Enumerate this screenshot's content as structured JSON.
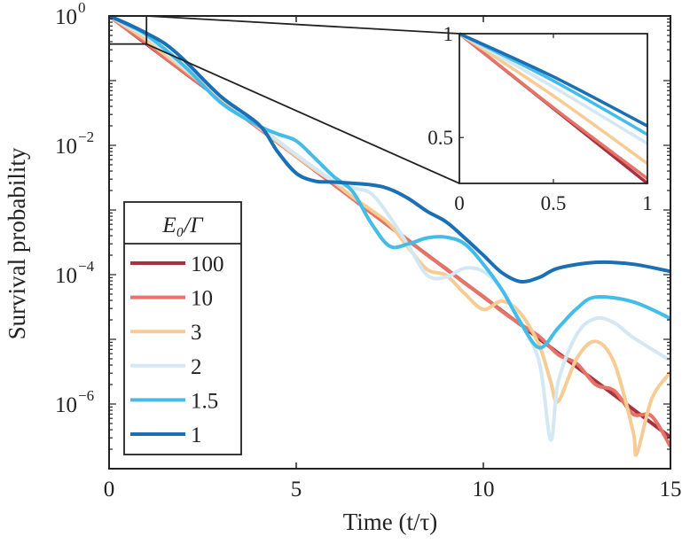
{
  "chart_data": {
    "type": "line",
    "xlabel": "Time (t/τ)",
    "ylabel": "Survival probability",
    "xlim": [
      0,
      15
    ],
    "ylim": [
      1e-07,
      1
    ],
    "yscale": "log",
    "x_ticks": [
      "0",
      "5",
      "10",
      "15"
    ],
    "y_ticks": [
      {
        "base": "10",
        "exp": "0"
      },
      {
        "base": "10",
        "exp": "-2"
      },
      {
        "base": "10",
        "exp": "-4"
      },
      {
        "base": "10",
        "exp": "-6"
      }
    ],
    "grid": false,
    "legend": {
      "title": "E₀/Γ",
      "placement": "bottom-left"
    },
    "series": [
      {
        "name": "100",
        "color": "#a8313f",
        "t": [
          0,
          1,
          2,
          3,
          4,
          5,
          6,
          7,
          8,
          9,
          10,
          11,
          12,
          13,
          14,
          15
        ],
        "p": [
          1,
          0.368,
          0.135,
          0.0498,
          0.0183,
          0.00674,
          0.00248,
          0.000912,
          0.000335,
          0.000123,
          4.54e-05,
          1.67e-05,
          6.14e-06,
          2.26e-06,
          8.32e-07,
          3.06e-07
        ]
      },
      {
        "name": "10",
        "color": "#e57368",
        "t": [
          0,
          0.5,
          1,
          1.5,
          2,
          2.5,
          3,
          3.5,
          4,
          4.5,
          5,
          5.5,
          6,
          6.5,
          7,
          7.5,
          8,
          8.5,
          9,
          9.5,
          10,
          10.5,
          11,
          11.5,
          12,
          12.5,
          13,
          13.5,
          14,
          14.5,
          15
        ],
        "p": [
          1,
          0.61,
          0.38,
          0.225,
          0.137,
          0.083,
          0.05,
          0.03,
          0.0183,
          0.0112,
          0.0068,
          0.0041,
          0.0025,
          0.0015,
          0.00091,
          0.00056,
          0.00034,
          0.0002,
          0.000125,
          7.4e-05,
          4.6e-05,
          2.7e-05,
          1.7e-05,
          1.1e-05,
          5.8e-06,
          4.2e-06,
          2e-06,
          1.6e-06,
          7e-07,
          6.5e-07,
          2.2e-07
        ]
      },
      {
        "name": "3",
        "color": "#f6cc94",
        "t": [
          0,
          0.5,
          1,
          1.5,
          2,
          3,
          4,
          5,
          5.5,
          6,
          6.5,
          7,
          7.5,
          8,
          8.5,
          9,
          9.5,
          10,
          10.5,
          11,
          11.5,
          11.8,
          12,
          12.5,
          13,
          13.5,
          14,
          14.1,
          14.5,
          15
        ],
        "p": [
          1,
          0.66,
          0.42,
          0.25,
          0.15,
          0.052,
          0.019,
          0.0068,
          0.0042,
          0.0027,
          0.0016,
          0.001,
          0.0006,
          0.00026,
          0.00012,
          9.8e-05,
          5.1e-05,
          2.9e-05,
          3.9e-05,
          2.5e-05,
          7.9e-06,
          2.2e-06,
          1.1e-06,
          5.1e-06,
          9.3e-06,
          4.3e-06,
          3.8e-07,
          1.7e-07,
          1.2e-06,
          3.1e-06
        ]
      },
      {
        "name": "2",
        "color": "#d3e8f3",
        "t": [
          0,
          0.5,
          1,
          1.5,
          2,
          3,
          4,
          5,
          6,
          6.5,
          7,
          7.5,
          8,
          8.5,
          9,
          9.5,
          10,
          10.5,
          11,
          11.5,
          11.8,
          12,
          12.5,
          13,
          13.5,
          14,
          15
        ],
        "p": [
          1,
          0.7,
          0.48,
          0.28,
          0.16,
          0.055,
          0.02,
          0.0072,
          0.0028,
          0.0022,
          0.0018,
          0.00078,
          0.00028,
          9.8e-05,
          9.1e-05,
          0.000126,
          0.000112,
          5.8e-05,
          1.8e-05,
          4.3e-06,
          2.8e-07,
          2.2e-06,
          1.2e-05,
          2.1e-05,
          1.8e-05,
          1.07e-05,
          4.7e-06
        ]
      },
      {
        "name": "1.5",
        "color": "#43bcea",
        "t": [
          0,
          0.5,
          1,
          2,
          3,
          4,
          4.5,
          5,
          5.5,
          6,
          6.5,
          7,
          7.5,
          8,
          8.5,
          9,
          9.5,
          10,
          10.5,
          11,
          11.5,
          12,
          12.5,
          13,
          14,
          15
        ],
        "p": [
          1,
          0.73,
          0.51,
          0.17,
          0.045,
          0.02,
          0.015,
          0.0117,
          0.0063,
          0.0033,
          0.00195,
          0.00063,
          0.000275,
          0.0003,
          0.00037,
          0.00038,
          0.0003,
          0.000145,
          5.8e-05,
          1.8e-05,
          7.4e-06,
          1.5e-05,
          3e-05,
          4.5e-05,
          3.8e-05,
          2.1e-05
        ]
      },
      {
        "name": "1",
        "color": "#1a6fb5",
        "t": [
          0,
          0.5,
          1,
          1.5,
          2,
          3,
          4,
          4.5,
          5,
          5.5,
          6,
          7,
          7.5,
          8,
          8.5,
          9,
          9.5,
          10,
          10.5,
          11,
          11.5,
          12,
          13,
          14,
          15
        ],
        "p": [
          1,
          0.75,
          0.54,
          0.37,
          0.21,
          0.056,
          0.021,
          0.008,
          0.0037,
          0.0028,
          0.0027,
          0.00245,
          0.0021,
          0.0015,
          0.00095,
          0.00066,
          0.00037,
          0.0002,
          0.000107,
          7.8e-05,
          9.1e-05,
          0.000126,
          0.000155,
          0.000145,
          0.000112
        ]
      }
    ],
    "inset": {
      "xlim": [
        0,
        1
      ],
      "ylim": [
        0.368,
        1
      ],
      "yscale": "log",
      "x_ticks": [
        "0",
        "0.5",
        "1"
      ],
      "y_ticks": [
        "1",
        "0.5"
      ]
    }
  }
}
